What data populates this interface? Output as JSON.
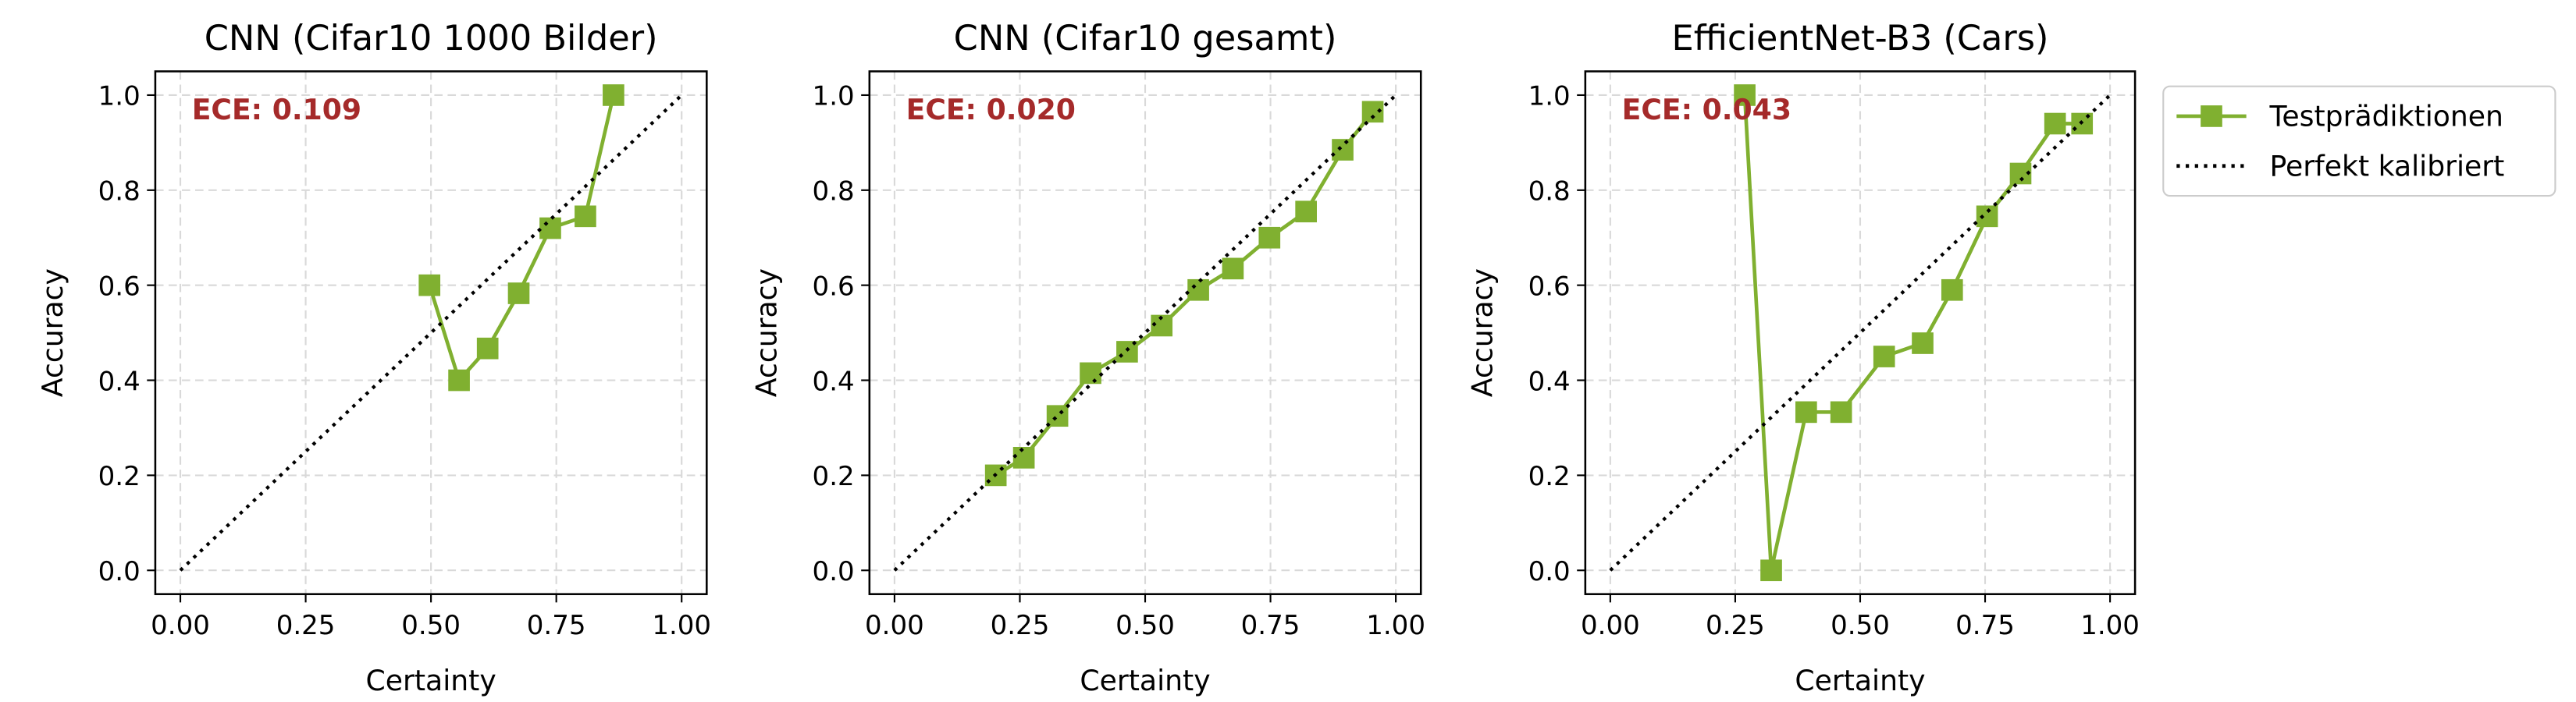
{
  "chart_data": [
    {
      "type": "line",
      "title": "CNN (Cifar10 1000 Bilder)",
      "x_label": "Certainty",
      "y_label": "Accuracy",
      "annotation": "ECE: 0.109",
      "xlim": [
        -0.05,
        1.05
      ],
      "ylim": [
        -0.05,
        1.05
      ],
      "xticks": [
        {
          "value": 0,
          "label": "0.00"
        },
        {
          "value": 0.25,
          "label": "0.25"
        },
        {
          "value": 0.5,
          "label": "0.50"
        },
        {
          "value": 0.75,
          "label": "0.75"
        },
        {
          "value": 1,
          "label": "1.00"
        }
      ],
      "yticks": [
        {
          "value": 0,
          "label": "0.0"
        },
        {
          "value": 0.2,
          "label": "0.2"
        },
        {
          "value": 0.4,
          "label": "0.4"
        },
        {
          "value": 0.6,
          "label": "0.6"
        },
        {
          "value": 0.8,
          "label": "0.8"
        },
        {
          "value": 1,
          "label": "1.0"
        }
      ],
      "grid": true,
      "series": [
        {
          "color": "#80b030",
          "marker": "square",
          "x": [
            0.497,
            0.556,
            0.613,
            0.675,
            0.738,
            0.808,
            0.864
          ],
          "values": [
            0.6,
            0.4,
            0.467,
            0.583,
            0.72,
            0.745,
            1.0
          ]
        },
        {
          "color": "#000000",
          "dash": "dotted",
          "x": [
            0,
            1
          ],
          "values": [
            0,
            1
          ]
        }
      ]
    },
    {
      "type": "line",
      "title": "CNN (Cifar10 gesamt)",
      "x_label": "Certainty",
      "y_label": "Accuracy",
      "annotation": "ECE: 0.020",
      "xlim": [
        -0.05,
        1.05
      ],
      "ylim": [
        -0.05,
        1.05
      ],
      "xticks": [
        {
          "value": 0,
          "label": "0.00"
        },
        {
          "value": 0.25,
          "label": "0.25"
        },
        {
          "value": 0.5,
          "label": "0.50"
        },
        {
          "value": 0.75,
          "label": "0.75"
        },
        {
          "value": 1,
          "label": "1.00"
        }
      ],
      "yticks": [
        {
          "value": 0,
          "label": "0.0"
        },
        {
          "value": 0.2,
          "label": "0.2"
        },
        {
          "value": 0.4,
          "label": "0.4"
        },
        {
          "value": 0.6,
          "label": "0.6"
        },
        {
          "value": 0.8,
          "label": "0.8"
        },
        {
          "value": 1,
          "label": "1.0"
        }
      ],
      "grid": true,
      "series": [
        {
          "color": "#80b030",
          "marker": "square",
          "x": [
            0.202,
            0.258,
            0.325,
            0.391,
            0.464,
            0.533,
            0.606,
            0.675,
            0.748,
            0.821,
            0.894,
            0.954
          ],
          "values": [
            0.2,
            0.237,
            0.325,
            0.415,
            0.46,
            0.515,
            0.59,
            0.635,
            0.7,
            0.755,
            0.885,
            0.965
          ]
        },
        {
          "color": "#000000",
          "dash": "dotted",
          "x": [
            0,
            1
          ],
          "values": [
            0,
            1
          ]
        }
      ]
    },
    {
      "type": "line",
      "title": "EfficientNet-B3 (Cars)",
      "x_label": "Certainty",
      "y_label": "Accuracy",
      "annotation": "ECE: 0.043",
      "xlim": [
        -0.05,
        1.05
      ],
      "ylim": [
        -0.05,
        1.05
      ],
      "xticks": [
        {
          "value": 0,
          "label": "0.00"
        },
        {
          "value": 0.25,
          "label": "0.25"
        },
        {
          "value": 0.5,
          "label": "0.50"
        },
        {
          "value": 0.75,
          "label": "0.75"
        },
        {
          "value": 1,
          "label": "1.00"
        }
      ],
      "yticks": [
        {
          "value": 0,
          "label": "0.0"
        },
        {
          "value": 0.2,
          "label": "0.2"
        },
        {
          "value": 0.4,
          "label": "0.4"
        },
        {
          "value": 0.6,
          "label": "0.6"
        },
        {
          "value": 0.8,
          "label": "0.8"
        },
        {
          "value": 1,
          "label": "1.0"
        }
      ],
      "grid": true,
      "legend": "outside-right",
      "series": [
        {
          "name": "Testprädiktionen",
          "color": "#80b030",
          "marker": "square",
          "x": [
            0.269,
            0.322,
            0.392,
            0.462,
            0.548,
            0.625,
            0.684,
            0.754,
            0.821,
            0.89,
            0.944
          ],
          "values": [
            1.0,
            0.0,
            0.333,
            0.333,
            0.45,
            0.478,
            0.59,
            0.745,
            0.835,
            0.94,
            0.94
          ]
        },
        {
          "name": "Perfekt kalibriert",
          "color": "#000000",
          "dash": "dotted",
          "x": [
            0,
            1
          ],
          "values": [
            0,
            1
          ]
        }
      ]
    }
  ]
}
